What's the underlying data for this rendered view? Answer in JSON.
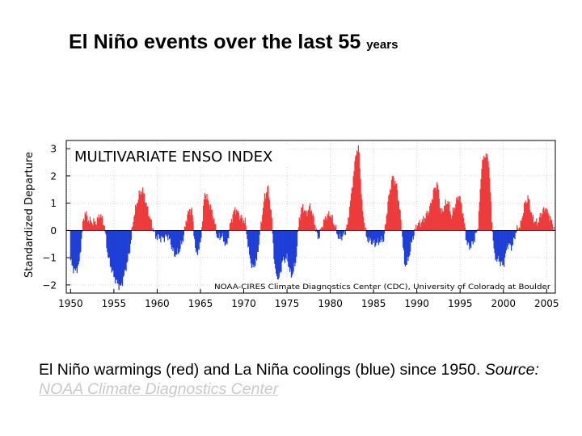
{
  "slide": {
    "title_main": "El Niño events over the last 55",
    "title_suffix": "years",
    "caption_text": "El Niño warmings (red) and La Niña coolings (blue) since 1950.",
    "caption_source_label": "Source:",
    "caption_link_text": "NOAA Climate Diagnostics Center"
  },
  "chart_data": {
    "type": "bar",
    "title": "MULTIVARIATE ENSO INDEX",
    "ylabel": "Standardized Departure",
    "xlabel": "",
    "credit": "NOAA-CIRES Climate Diagnostics Center (CDC), University of Colorado at Boulder",
    "xlim": [
      1949.5,
      2006
    ],
    "ylim": [
      -2.3,
      3.3
    ],
    "x_ticks": [
      1950,
      1955,
      1960,
      1965,
      1970,
      1975,
      1980,
      1985,
      1990,
      1995,
      2000,
      2005
    ],
    "y_ticks": [
      -2,
      -1,
      0,
      1,
      2,
      3
    ],
    "y_tick_labels": [
      "−2",
      "−1",
      "0",
      "1",
      "2",
      "3"
    ],
    "colors": {
      "positive": "#ee3b3b",
      "negative": "#1f3fd8",
      "frame": "#000000",
      "grid": "#c8c8c8"
    },
    "sampling": "monthly, linear interpolation between yearly anchor values",
    "anchors": [
      [
        1950.0,
        -1.1
      ],
      [
        1950.3,
        -1.4
      ],
      [
        1950.6,
        -1.5
      ],
      [
        1951.0,
        -1.2
      ],
      [
        1951.4,
        0.2
      ],
      [
        1951.7,
        0.7
      ],
      [
        1952.0,
        0.4
      ],
      [
        1952.5,
        0.3
      ],
      [
        1953.0,
        0.3
      ],
      [
        1953.4,
        0.6
      ],
      [
        1953.9,
        0.2
      ],
      [
        1954.3,
        -0.9
      ],
      [
        1954.8,
        -1.5
      ],
      [
        1955.3,
        -1.9
      ],
      [
        1955.8,
        -2.1
      ],
      [
        1956.3,
        -1.5
      ],
      [
        1956.8,
        -0.8
      ],
      [
        1957.3,
        0.5
      ],
      [
        1957.9,
        1.3
      ],
      [
        1958.3,
        1.5
      ],
      [
        1958.8,
        0.9
      ],
      [
        1959.3,
        0.3
      ],
      [
        1959.8,
        -0.2
      ],
      [
        1960.5,
        -0.3
      ],
      [
        1961.3,
        -0.2
      ],
      [
        1962.0,
        -0.9
      ],
      [
        1962.5,
        -0.8
      ],
      [
        1963.0,
        -0.3
      ],
      [
        1963.5,
        0.6
      ],
      [
        1964.0,
        0.8
      ],
      [
        1964.5,
        -0.9
      ],
      [
        1965.0,
        -0.5
      ],
      [
        1965.5,
        1.4
      ],
      [
        1966.0,
        1.0
      ],
      [
        1966.5,
        0.5
      ],
      [
        1967.0,
        -0.3
      ],
      [
        1967.5,
        -0.2
      ],
      [
        1968.0,
        -0.6
      ],
      [
        1968.5,
        0.3
      ],
      [
        1969.0,
        0.8
      ],
      [
        1969.6,
        0.5
      ],
      [
        1970.2,
        0.3
      ],
      [
        1970.6,
        -0.8
      ],
      [
        1971.0,
        -1.4
      ],
      [
        1971.5,
        -1.1
      ],
      [
        1972.0,
        0.2
      ],
      [
        1972.4,
        1.2
      ],
      [
        1972.8,
        1.6
      ],
      [
        1973.2,
        0.6
      ],
      [
        1973.6,
        -1.4
      ],
      [
        1974.0,
        -1.9
      ],
      [
        1974.5,
        -1.1
      ],
      [
        1975.0,
        -1.0
      ],
      [
        1975.5,
        -1.7
      ],
      [
        1976.0,
        -1.2
      ],
      [
        1976.4,
        0.4
      ],
      [
        1976.8,
        0.9
      ],
      [
        1977.2,
        0.6
      ],
      [
        1977.7,
        0.9
      ],
      [
        1978.1,
        0.4
      ],
      [
        1978.6,
        -0.3
      ],
      [
        1979.0,
        0.1
      ],
      [
        1979.5,
        0.5
      ],
      [
        1980.0,
        0.6
      ],
      [
        1980.5,
        0.2
      ],
      [
        1981.0,
        -0.3
      ],
      [
        1981.5,
        -0.2
      ],
      [
        1982.0,
        0.2
      ],
      [
        1982.5,
        1.5
      ],
      [
        1983.0,
        2.9
      ],
      [
        1983.3,
        3.0
      ],
      [
        1983.7,
        0.8
      ],
      [
        1984.2,
        -0.3
      ],
      [
        1984.7,
        -0.4
      ],
      [
        1985.2,
        -0.5
      ],
      [
        1985.7,
        -0.4
      ],
      [
        1986.2,
        -0.3
      ],
      [
        1986.7,
        1.1
      ],
      [
        1987.2,
        2.0
      ],
      [
        1987.7,
        1.6
      ],
      [
        1988.2,
        0.3
      ],
      [
        1988.6,
        -1.3
      ],
      [
        1989.0,
        -1.1
      ],
      [
        1989.5,
        -0.3
      ],
      [
        1990.0,
        0.2
      ],
      [
        1990.5,
        0.3
      ],
      [
        1991.0,
        0.5
      ],
      [
        1991.5,
        0.8
      ],
      [
        1992.0,
        1.5
      ],
      [
        1992.4,
        1.7
      ],
      [
        1992.8,
        0.6
      ],
      [
        1993.2,
        0.9
      ],
      [
        1993.6,
        1.1
      ],
      [
        1994.0,
        0.5
      ],
      [
        1994.5,
        1.0
      ],
      [
        1994.9,
        1.3
      ],
      [
        1995.3,
        0.7
      ],
      [
        1995.8,
        -0.5
      ],
      [
        1996.2,
        -0.6
      ],
      [
        1996.7,
        -0.3
      ],
      [
        1997.1,
        0.2
      ],
      [
        1997.5,
        2.4
      ],
      [
        1997.9,
        2.8
      ],
      [
        1998.3,
        2.6
      ],
      [
        1998.7,
        0.2
      ],
      [
        1999.0,
        -1.0
      ],
      [
        1999.5,
        -1.1
      ],
      [
        2000.0,
        -1.3
      ],
      [
        2000.5,
        -0.5
      ],
      [
        2001.0,
        -0.6
      ],
      [
        2001.5,
        0.0
      ],
      [
        2002.0,
        0.2
      ],
      [
        2002.5,
        1.0
      ],
      [
        2002.9,
        1.2
      ],
      [
        2003.3,
        0.5
      ],
      [
        2003.7,
        0.3
      ],
      [
        2004.0,
        0.3
      ],
      [
        2004.5,
        0.7
      ],
      [
        2004.9,
        0.8
      ],
      [
        2005.2,
        0.6
      ],
      [
        2005.6,
        0.3
      ],
      [
        2005.9,
        0.0
      ]
    ]
  }
}
